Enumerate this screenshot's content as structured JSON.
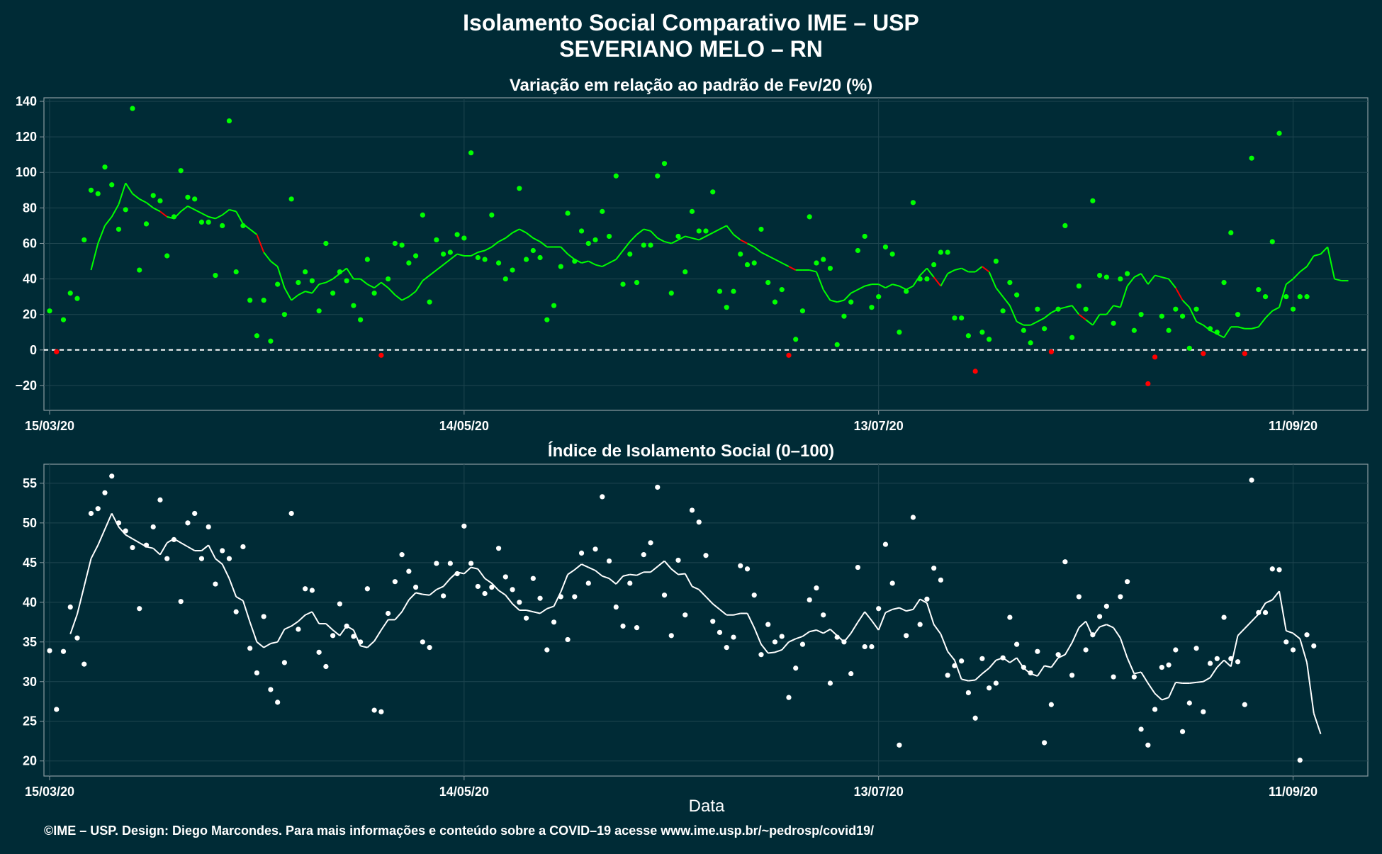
{
  "title_line1": "Isolamento Social Comparativo IME – USP",
  "title_line2": "SEVERIANO MELO – RN",
  "footer": "©IME – USP. Design: Diego Marcondes. Para mais informações e conteúdo sobre a COVID–19 acesse www.ime.usp.br/~pedrosp/covid19/",
  "colors": {
    "background": "#002b36",
    "panel_border": "#8a9aa0",
    "grid": "#1f4650",
    "positive_points": "#00ff00",
    "negative_points": "#ff0000",
    "white": "#ffffff"
  },
  "chart_data": [
    {
      "type": "scatter",
      "title": "Variação em relação ao padrão de Fev/20 (%)",
      "xlabel": "",
      "ylabel": "",
      "x_ticks": [
        "15/03/20",
        "14/05/20",
        "13/07/20",
        "11/09/20"
      ],
      "x_range": [
        "15/03/20",
        "21/09/20"
      ],
      "ylim": [
        -34,
        142
      ],
      "y_ticks": [
        -20,
        0,
        20,
        40,
        60,
        80,
        100,
        120,
        140
      ],
      "reference_line": {
        "y": 0,
        "style": "dashed"
      },
      "series": [
        {
          "kind": "points",
          "start_date": "15/03/20",
          "values": [
            22,
            -1,
            17,
            32,
            29,
            62,
            90,
            88,
            103,
            93,
            68,
            79,
            136,
            45,
            71,
            87,
            84,
            53,
            75,
            101,
            86,
            85,
            72,
            72,
            42,
            70,
            129,
            44,
            70,
            28,
            8,
            28,
            5,
            37,
            20,
            85,
            38,
            44,
            39,
            22,
            60,
            32,
            44,
            39,
            25,
            17,
            51,
            32,
            -3,
            40,
            60,
            59,
            49,
            53,
            76,
            27,
            62,
            54,
            55,
            65,
            63,
            111,
            52,
            51,
            76,
            49,
            40,
            45,
            91,
            51,
            56,
            52,
            17,
            25,
            47,
            77,
            50,
            67,
            60,
            62,
            78,
            64,
            98,
            37,
            54,
            38,
            59,
            59,
            98,
            105,
            32,
            64,
            44,
            78,
            67,
            67,
            89,
            33,
            24,
            33,
            54,
            48,
            49,
            68,
            38,
            27,
            34,
            -3,
            6,
            22,
            75,
            49,
            51,
            46,
            3,
            19,
            27,
            56,
            64,
            24,
            30,
            58,
            54,
            10,
            33,
            83,
            40,
            40,
            48,
            55,
            55,
            18,
            18,
            8,
            -12,
            10,
            6,
            50,
            22,
            38,
            31,
            11,
            4,
            23,
            12,
            -1,
            23,
            70,
            7,
            36,
            23,
            84,
            42,
            41,
            15,
            40,
            43,
            11,
            20,
            -19,
            -4,
            19,
            11,
            23,
            19,
            1,
            23,
            -2,
            12,
            10,
            38,
            66,
            20,
            -2,
            108,
            34,
            30,
            61,
            122,
            30,
            23,
            30,
            30
          ]
        },
        {
          "kind": "moving_average",
          "start_date": "21/03/20",
          "values": [
            45,
            60,
            70,
            75,
            82,
            94,
            88,
            85,
            83,
            80,
            78,
            75,
            74,
            78,
            81,
            79,
            77,
            75,
            74,
            76,
            79,
            78,
            71,
            68,
            65,
            55,
            50,
            47,
            35,
            28,
            31,
            33,
            32,
            37,
            38,
            40,
            43,
            46,
            40,
            40,
            37,
            35,
            38,
            35,
            31,
            28,
            30,
            33,
            39,
            42,
            45,
            48,
            51,
            54,
            53,
            53,
            55,
            56,
            58,
            61,
            63,
            66,
            68,
            66,
            63,
            61,
            58,
            58,
            58,
            54,
            51,
            49,
            50,
            48,
            47,
            49,
            51,
            56,
            61,
            65,
            68,
            67,
            63,
            61,
            60,
            62,
            64,
            63,
            62,
            64,
            66,
            68,
            70,
            65,
            62,
            60,
            58,
            55,
            53,
            51,
            49,
            47,
            45,
            45,
            45,
            44,
            34,
            28,
            27,
            28,
            32,
            34,
            36,
            37,
            37,
            35,
            37,
            36,
            34,
            36,
            42,
            46,
            41,
            36,
            43,
            45,
            46,
            44,
            44,
            47,
            44,
            35,
            30,
            25,
            16,
            14,
            14,
            16,
            18,
            21,
            23,
            24,
            25,
            20,
            17,
            14,
            20,
            20,
            25,
            24,
            36,
            41,
            43,
            37,
            42,
            41,
            40,
            35,
            28,
            24,
            16,
            14,
            11,
            9,
            7,
            13,
            13,
            12,
            12,
            13,
            18,
            22,
            24,
            37,
            40,
            44,
            47,
            53,
            54,
            58,
            40,
            39,
            39
          ]
        }
      ]
    },
    {
      "type": "scatter",
      "title": "Índice de Isolamento Social (0–100)",
      "xlabel": "Data",
      "ylabel": "",
      "x_ticks": [
        "15/03/20",
        "14/05/20",
        "13/07/20",
        "11/09/20"
      ],
      "x_range": [
        "15/03/20",
        "21/09/20"
      ],
      "ylim": [
        18.1,
        57.4
      ],
      "y_ticks": [
        20,
        25,
        30,
        35,
        40,
        45,
        50,
        55
      ],
      "series": [
        {
          "kind": "points",
          "start_date": "15/03/20",
          "values": [
            33.9,
            26.5,
            33.8,
            39.4,
            35.5,
            32.2,
            51.2,
            51.8,
            53.8,
            55.9,
            50.0,
            49.0,
            46.9,
            39.2,
            47.2,
            49.5,
            52.9,
            45.5,
            47.9,
            40.1,
            50.0,
            51.2,
            45.5,
            49.5,
            42.3,
            46.5,
            45.5,
            38.8,
            47.0,
            34.2,
            31.1,
            38.2,
            29.0,
            27.4,
            32.4,
            51.2,
            36.6,
            41.7,
            41.5,
            33.7,
            31.9,
            35.8,
            39.8,
            37.0,
            35.7,
            35.0,
            41.7,
            26.4,
            26.2,
            38.6,
            42.6,
            46.0,
            43.9,
            41.9,
            35.0,
            34.3,
            44.9,
            40.8,
            44.9,
            43.6,
            49.6,
            44.9,
            42.0,
            41.1,
            41.9,
            46.8,
            43.2,
            41.6,
            40.0,
            38.0,
            43.0,
            40.5,
            34.0,
            37.5,
            40.7,
            35.3,
            40.7,
            46.2,
            42.4,
            46.7,
            53.3,
            45.2,
            39.4,
            37.0,
            42.4,
            36.8,
            46.0,
            47.5,
            54.5,
            40.9,
            35.8,
            45.3,
            38.4,
            51.6,
            50.1,
            45.9,
            37.6,
            36.2,
            34.3,
            35.6,
            44.6,
            44.2,
            40.9,
            33.4,
            37.2,
            35.0,
            35.7,
            28.0,
            31.7,
            34.7,
            40.3,
            41.8,
            38.4,
            29.8,
            35.6,
            35.0,
            31.0,
            44.4,
            34.4,
            34.4,
            39.2,
            47.3,
            42.4,
            22.0,
            35.8,
            50.7,
            37.2,
            40.4,
            44.3,
            42.8,
            30.8,
            32.0,
            32.6,
            28.6,
            25.4,
            32.9,
            29.2,
            29.8,
            33.0,
            38.1,
            34.7,
            31.8,
            31.1,
            33.8,
            22.3,
            27.1,
            33.4,
            45.1,
            30.8,
            40.7,
            34.0,
            35.9,
            38.2,
            39.5,
            30.6,
            40.7,
            42.6,
            30.6,
            24.0,
            22.0,
            26.5,
            31.8,
            32.1,
            34.0,
            23.7,
            27.3,
            34.2,
            26.2,
            32.3,
            32.9,
            38.1,
            32.9,
            32.5,
            27.1,
            55.4,
            38.7,
            38.7,
            44.2,
            44.1,
            35.0,
            34.0,
            20.1,
            35.9,
            34.5
          ]
        },
        {
          "kind": "moving_average",
          "start_date": "18/03/20",
          "values": [
            36.0,
            38.5,
            42.0,
            45.5,
            47.2,
            49.2,
            51.2,
            49.5,
            48.5,
            48.0,
            47.5,
            47.0,
            46.8,
            46.0,
            47.5,
            48.0,
            47.5,
            47.0,
            46.5,
            46.5,
            47.2,
            45.5,
            44.8,
            43.0,
            40.7,
            40.2,
            37.5,
            35.0,
            34.3,
            34.8,
            35.0,
            36.6,
            37.0,
            37.6,
            38.4,
            38.8,
            37.3,
            37.3,
            36.5,
            35.8,
            37.0,
            36.5,
            34.5,
            34.3,
            35.1,
            36.5,
            37.8,
            37.8,
            38.8,
            40.3,
            41.2,
            41.0,
            40.9,
            41.6,
            42.0,
            43.0,
            43.8,
            43.6,
            44.4,
            44.2,
            43.0,
            42.4,
            41.5,
            40.9,
            39.8,
            39.0,
            39.0,
            38.8,
            38.6,
            39.2,
            39.5,
            41.3,
            43.5,
            44.1,
            44.8,
            44.4,
            44.0,
            43.3,
            43.0,
            42.3,
            43.3,
            43.5,
            43.4,
            43.8,
            43.8,
            44.5,
            45.2,
            44.2,
            43.5,
            43.6,
            42.0,
            41.6,
            40.7,
            39.8,
            39.1,
            38.4,
            38.4,
            38.6,
            38.6,
            36.8,
            34.7,
            33.6,
            33.7,
            34.0,
            35.0,
            35.4,
            35.7,
            36.3,
            36.5,
            36.1,
            36.6,
            35.8,
            35.0,
            36.1,
            37.5,
            38.8,
            37.7,
            36.5,
            38.7,
            39.1,
            39.3,
            38.9,
            39.1,
            40.4,
            39.9,
            37.2,
            36.0,
            33.8,
            32.7,
            30.3,
            30.1,
            30.2,
            31.0,
            31.7,
            32.7,
            33.0,
            32.4,
            33.0,
            31.7,
            31.0,
            30.7,
            32.0,
            31.8,
            33.0,
            33.4,
            34.9,
            36.8,
            37.6,
            35.7,
            36.9,
            37.2,
            36.8,
            35.5,
            33.0,
            31.0,
            31.2,
            29.8,
            28.5,
            27.7,
            28.0,
            29.9,
            29.8,
            29.8,
            29.9,
            30.0,
            30.5,
            31.8,
            32.7,
            31.9,
            35.8,
            36.7,
            37.6,
            38.5,
            39.9,
            40.3,
            41.4,
            36.4,
            36.1,
            35.4,
            32.4,
            26.0,
            23.4
          ]
        }
      ]
    }
  ]
}
